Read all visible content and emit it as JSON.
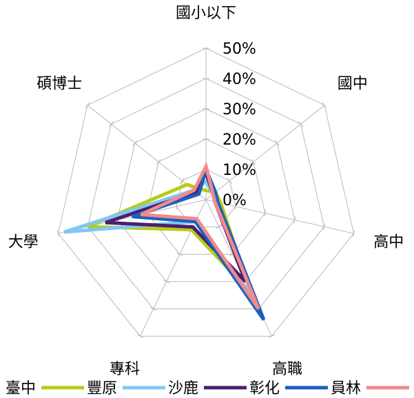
{
  "chart_data": {
    "type": "radar",
    "axes": [
      "國小以下",
      "國中",
      "高中",
      "高職",
      "專科",
      "大學",
      "碩博士"
    ],
    "tick_labels": [
      "0%",
      "10%",
      "20%",
      "30%",
      "40%",
      "50%"
    ],
    "rlim": [
      0,
      50
    ],
    "grid": true,
    "legend_position": "bottom",
    "series": [
      {
        "name": "臺中",
        "color": "#b5cc18",
        "values": [
          3,
          4,
          5,
          34,
          11,
          40,
          8
        ]
      },
      {
        "name": "豐原",
        "color": "#7ec8f5",
        "values": [
          6,
          3,
          4,
          36,
          8,
          48,
          5
        ]
      },
      {
        "name": "沙鹿",
        "color": "#4b1f6f",
        "values": [
          9,
          3,
          3,
          30,
          10,
          34,
          4
        ]
      },
      {
        "name": "彰化",
        "color": "#1a5fc0",
        "values": [
          10,
          4,
          4,
          44,
          8,
          25,
          3
        ]
      },
      {
        "name": "員林",
        "color": "#f08a8c",
        "values": [
          11,
          3,
          3,
          40,
          7,
          22,
          5
        ]
      }
    ]
  }
}
